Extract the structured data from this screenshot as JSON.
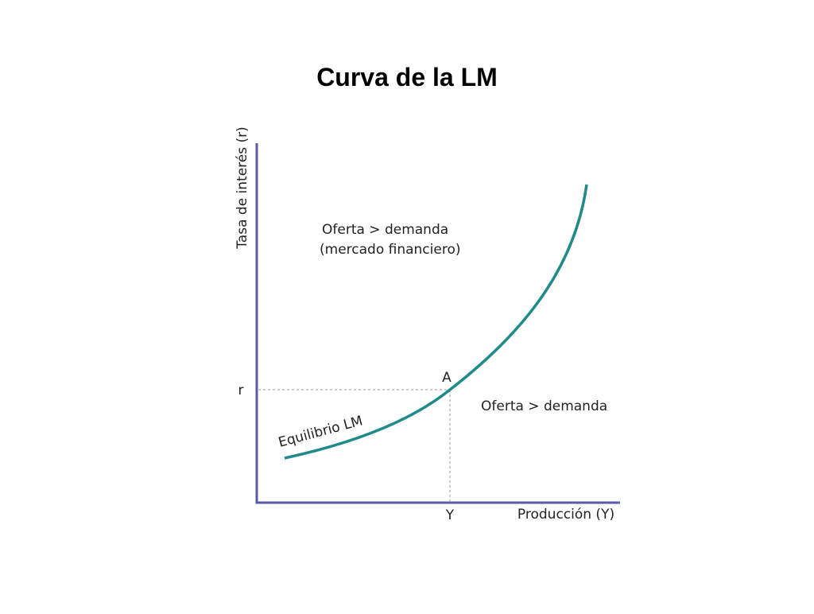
{
  "title": "Curva de la LM",
  "axes": {
    "y_label": "Tasa de interés (r)",
    "x_label": "Producción (Y)",
    "r_label": "r",
    "y_point_label": "Y"
  },
  "point_label": "A",
  "regions": [
    {
      "lines": [
        "Oferta > demanda",
        "(mercado financiero)"
      ]
    },
    {
      "lines": [
        "Oferta > demanda"
      ]
    }
  ],
  "curve_label": "Equilibrio LM"
}
